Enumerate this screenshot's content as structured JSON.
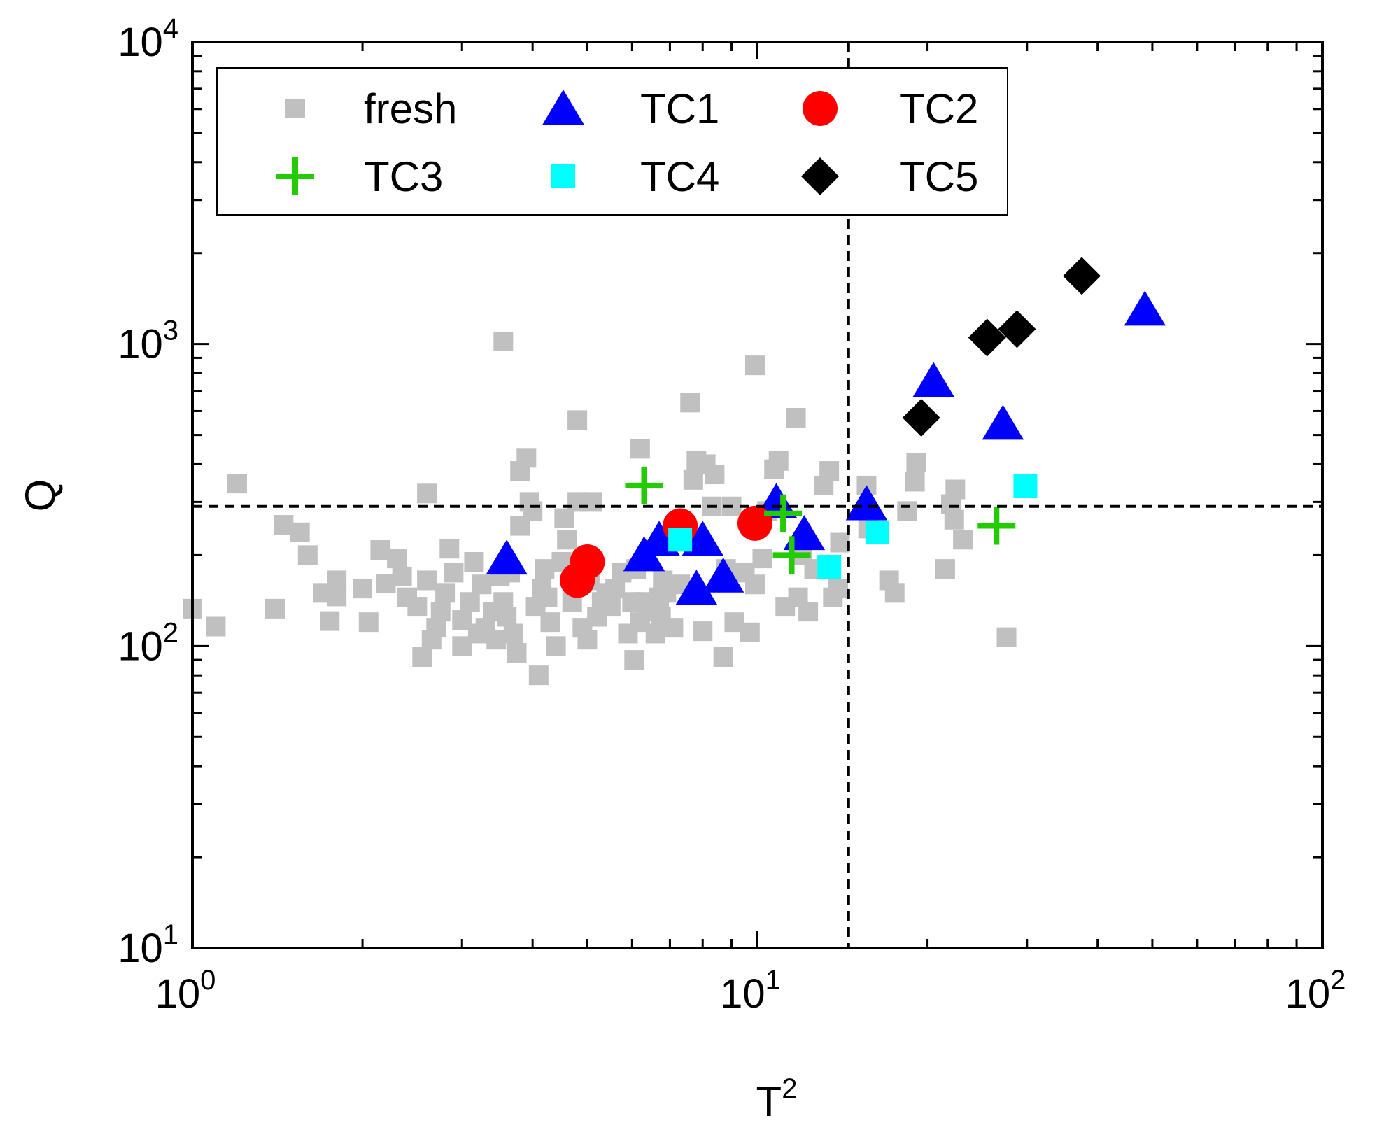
{
  "chart_data": {
    "type": "scatter",
    "xscale": "log",
    "yscale": "log",
    "xlabel": "T",
    "xlabel_superscript": "2",
    "ylabel": "Q",
    "xlim": [
      1,
      100
    ],
    "ylim": [
      10,
      10000
    ],
    "x_ticks": [
      {
        "value": 1,
        "base": "10",
        "exp": "0"
      },
      {
        "value": 10,
        "base": "10",
        "exp": "1"
      },
      {
        "value": 100,
        "base": "10",
        "exp": "2"
      }
    ],
    "y_ticks": [
      {
        "value": 10,
        "base": "10",
        "exp": "1"
      },
      {
        "value": 100,
        "base": "10",
        "exp": "2"
      },
      {
        "value": 1000,
        "base": "10",
        "exp": "3"
      },
      {
        "value": 10000,
        "base": "10",
        "exp": "4"
      }
    ],
    "threshold_lines": {
      "x": 14.5,
      "y": 290
    },
    "legend_position": "top-left",
    "series": [
      {
        "name": "fresh",
        "marker": "square",
        "color": "#c0c0c0",
        "points": [
          [
            1.0,
            133
          ],
          [
            1.1,
            116
          ],
          [
            1.2,
            345
          ],
          [
            1.4,
            133
          ],
          [
            1.45,
            252
          ],
          [
            1.55,
            238
          ],
          [
            1.6,
            200
          ],
          [
            1.7,
            150
          ],
          [
            1.75,
            121
          ],
          [
            1.8,
            146
          ],
          [
            1.8,
            165
          ],
          [
            2.0,
            155
          ],
          [
            2.05,
            120
          ],
          [
            2.15,
            208
          ],
          [
            2.2,
            161
          ],
          [
            2.3,
            195
          ],
          [
            2.35,
            170
          ],
          [
            2.4,
            145
          ],
          [
            2.5,
            135
          ],
          [
            2.55,
            92
          ],
          [
            2.6,
            165
          ],
          [
            2.6,
            320
          ],
          [
            2.65,
            105
          ],
          [
            2.7,
            115
          ],
          [
            2.75,
            130
          ],
          [
            2.8,
            150
          ],
          [
            2.85,
            210
          ],
          [
            2.9,
            175
          ],
          [
            3.0,
            122
          ],
          [
            3.0,
            100
          ],
          [
            3.1,
            140
          ],
          [
            3.15,
            190
          ],
          [
            3.2,
            110
          ],
          [
            3.25,
            160
          ],
          [
            3.3,
            115
          ],
          [
            3.4,
            130
          ],
          [
            3.45,
            105
          ],
          [
            3.5,
            170
          ],
          [
            3.55,
            1020
          ],
          [
            3.55,
            140
          ],
          [
            3.6,
            125
          ],
          [
            3.65,
            175
          ],
          [
            3.7,
            110
          ],
          [
            3.75,
            95
          ],
          [
            3.8,
            250
          ],
          [
            3.8,
            380
          ],
          [
            3.9,
            420
          ],
          [
            3.95,
            300
          ],
          [
            4.0,
            280
          ],
          [
            4.05,
            135
          ],
          [
            4.1,
            80
          ],
          [
            4.15,
            155
          ],
          [
            4.2,
            180
          ],
          [
            4.25,
            145
          ],
          [
            4.3,
            120
          ],
          [
            4.4,
            100
          ],
          [
            4.5,
            190
          ],
          [
            4.55,
            265
          ],
          [
            4.6,
            225
          ],
          [
            4.7,
            140
          ],
          [
            4.8,
            300
          ],
          [
            4.8,
            560
          ],
          [
            4.9,
            115
          ],
          [
            5.0,
            105
          ],
          [
            5.05,
            165
          ],
          [
            5.1,
            300
          ],
          [
            5.2,
            125
          ],
          [
            5.3,
            140
          ],
          [
            5.4,
            150
          ],
          [
            5.5,
            135
          ],
          [
            5.6,
            155
          ],
          [
            5.75,
            175
          ],
          [
            5.9,
            110
          ],
          [
            6.0,
            140
          ],
          [
            6.05,
            90
          ],
          [
            6.1,
            180
          ],
          [
            6.2,
            450
          ],
          [
            6.2,
            120
          ],
          [
            6.3,
            140
          ],
          [
            6.4,
            130
          ],
          [
            6.6,
            110
          ],
          [
            6.7,
            145
          ],
          [
            6.75,
            125
          ],
          [
            6.8,
            165
          ],
          [
            6.9,
            150
          ],
          [
            7.1,
            115
          ],
          [
            7.3,
            160
          ],
          [
            7.6,
            640
          ],
          [
            7.7,
            355
          ],
          [
            7.8,
            410
          ],
          [
            8.0,
            112
          ],
          [
            8.1,
            400
          ],
          [
            8.3,
            290
          ],
          [
            8.4,
            370
          ],
          [
            8.7,
            92
          ],
          [
            8.8,
            180
          ],
          [
            9.0,
            290
          ],
          [
            9.1,
            120
          ],
          [
            9.5,
            175
          ],
          [
            9.7,
            111
          ],
          [
            9.9,
            850
          ],
          [
            9.9,
            160
          ],
          [
            10.2,
            195
          ],
          [
            10.4,
            280
          ],
          [
            10.7,
            385
          ],
          [
            10.9,
            410
          ],
          [
            11.2,
            135
          ],
          [
            11.7,
            570
          ],
          [
            11.8,
            145
          ],
          [
            12.0,
            200
          ],
          [
            12.3,
            130
          ],
          [
            12.6,
            180
          ],
          [
            13.1,
            340
          ],
          [
            13.4,
            380
          ],
          [
            13.6,
            145
          ],
          [
            13.9,
            155
          ],
          [
            14.0,
            220
          ],
          [
            15.6,
            340
          ],
          [
            15.7,
            245
          ],
          [
            17.1,
            165
          ],
          [
            17.5,
            150
          ],
          [
            18.4,
            280
          ],
          [
            19.0,
            350
          ],
          [
            19.1,
            405
          ],
          [
            21.5,
            180
          ],
          [
            22.0,
            295
          ],
          [
            22.4,
            330
          ],
          [
            22.3,
            262
          ],
          [
            23.1,
            225
          ],
          [
            27.6,
            107
          ]
        ]
      },
      {
        "name": "TC1",
        "marker": "triangle",
        "color": "#0000ff",
        "points": [
          [
            3.6,
            195
          ],
          [
            6.3,
            200
          ],
          [
            6.7,
            225
          ],
          [
            7.8,
            155
          ],
          [
            8.0,
            225
          ],
          [
            8.7,
            170
          ],
          [
            10.8,
            300
          ],
          [
            12.1,
            235
          ],
          [
            15.6,
            295
          ],
          [
            20.5,
            755
          ],
          [
            27.2,
            545
          ],
          [
            48.5,
            1300
          ]
        ]
      },
      {
        "name": "TC2",
        "marker": "circle",
        "color": "#ff0000",
        "points": [
          [
            4.8,
            165
          ],
          [
            5.0,
            190
          ],
          [
            7.3,
            250
          ],
          [
            9.9,
            255
          ]
        ]
      },
      {
        "name": "TC3",
        "marker": "plus",
        "color": "#22cc00",
        "points": [
          [
            6.3,
            340
          ],
          [
            11.1,
            275
          ],
          [
            11.5,
            200
          ],
          [
            26.5,
            250
          ]
        ]
      },
      {
        "name": "TC4",
        "marker": "square",
        "color": "#00ffff",
        "points": [
          [
            7.3,
            225
          ],
          [
            13.4,
            183
          ],
          [
            16.3,
            238
          ],
          [
            29.8,
            338
          ]
        ]
      },
      {
        "name": "TC5",
        "marker": "diamond",
        "color": "#000000",
        "points": [
          [
            19.5,
            570
          ],
          [
            25.5,
            1050
          ],
          [
            28.8,
            1120
          ],
          [
            37.5,
            1680
          ]
        ]
      }
    ]
  }
}
